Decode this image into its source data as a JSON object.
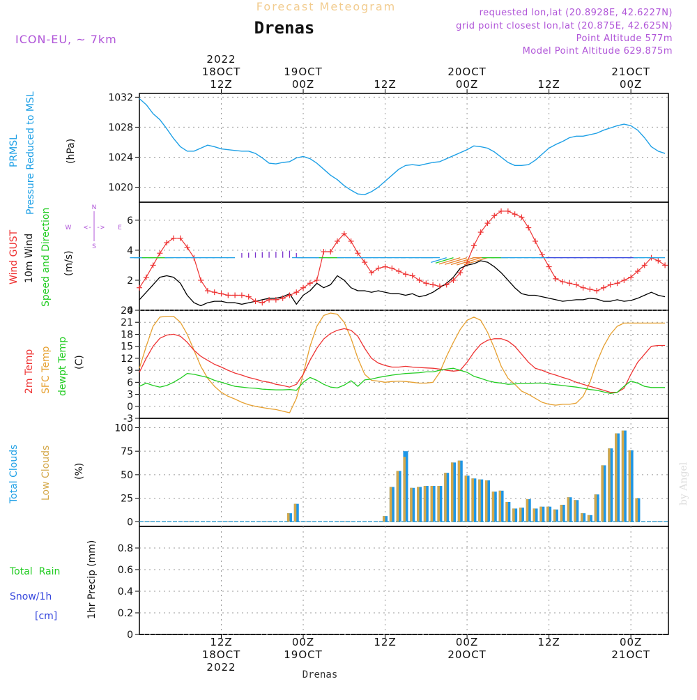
{
  "header": {
    "product": "Forecast Meteogram",
    "location": "Drenas",
    "model": "ICON-EU, ~ 7km",
    "requested": "requested lon,lat (20.8928E, 42.6227N)",
    "grid_point": "grid point closest lon,lat (20.875E, 42.625N)",
    "altitude": "Point Altitude 577m",
    "model_altitude": "Model Point Altitude 629.875m"
  },
  "footer_location": "Drenas",
  "watermark": "by Angel",
  "colors": {
    "pressure": "#1ea0e6",
    "gust": "#ee3333",
    "wind": "#000000",
    "t2m": "#ee3333",
    "sfc": "#e6a030",
    "dewpt": "#22cc22",
    "cloud_total": "#1e96e6",
    "cloud_low": "#d4a84a",
    "rain": "#22cc22",
    "snow": "#3344dd",
    "purple": "#b055d8"
  },
  "time_axis": {
    "top": [
      {
        "h": 12,
        "lines": [
          "2022",
          "18OCT",
          "12Z"
        ]
      },
      {
        "h": 24,
        "lines": [
          "19OCT",
          "00Z"
        ]
      },
      {
        "h": 36,
        "lines": [
          "12Z"
        ]
      },
      {
        "h": 48,
        "lines": [
          "20OCT",
          "00Z"
        ]
      },
      {
        "h": 60,
        "lines": [
          "12Z"
        ]
      },
      {
        "h": 72,
        "lines": [
          "21OCT",
          "00Z"
        ]
      }
    ],
    "bottom": [
      {
        "h": 12,
        "lines": [
          "12Z",
          "18OCT",
          "2022"
        ]
      },
      {
        "h": 24,
        "lines": [
          "00Z",
          "19OCT"
        ]
      },
      {
        "h": 36,
        "lines": [
          "12Z"
        ]
      },
      {
        "h": 48,
        "lines": [
          "00Z",
          "20OCT"
        ]
      },
      {
        "h": 60,
        "lines": [
          "12Z"
        ]
      },
      {
        "h": 72,
        "lines": [
          "00Z",
          "21OCT"
        ]
      }
    ]
  },
  "panels": {
    "pressure": {
      "labels": [
        "PRMSL",
        "Pressure Reduced to MSL"
      ],
      "unit": "(hPa)"
    },
    "wind": {
      "labels": [
        "Wind GUST",
        "10m Wind",
        "Speed and Direction"
      ],
      "unit": "(m/s)",
      "compass": [
        "N",
        "W",
        "<-|->",
        "E",
        "S"
      ]
    },
    "temp": {
      "labels": [
        "2m Temp",
        "SFC Temp",
        "dewpt Temp"
      ],
      "unit": "(C)"
    },
    "clouds": {
      "labels": [
        "Total Clouds",
        "Low Clouds"
      ],
      "unit": "(%)"
    },
    "precip": {
      "labels": [
        "Total  Rain",
        "Snow/1h",
        "[cm]"
      ],
      "ylabel": "1hr Precip (mm)"
    }
  },
  "chart_data": [
    {
      "type": "line",
      "title": "PRMSL Pressure Reduced to MSL",
      "ylabel": "(hPa)",
      "ylim": [
        1018,
        1032.5
      ],
      "yticks": [
        1020,
        1024,
        1028,
        1032
      ],
      "grid": true,
      "x_hours": [
        0,
        1,
        2,
        3,
        4,
        5,
        6,
        7,
        8,
        9,
        10,
        11,
        12,
        13,
        14,
        15,
        16,
        17,
        18,
        19,
        20,
        21,
        22,
        23,
        24,
        25,
        26,
        27,
        28,
        29,
        30,
        31,
        32,
        33,
        34,
        35,
        36,
        37,
        38,
        39,
        40,
        41,
        42,
        43,
        44,
        45,
        46,
        47,
        48,
        49,
        50,
        51,
        52,
        53,
        54,
        55,
        56,
        57,
        58,
        59,
        60,
        61,
        62,
        63,
        64,
        65,
        66,
        67,
        68,
        69,
        70,
        71,
        72,
        73,
        74,
        75,
        76,
        77
      ],
      "series": [
        {
          "name": "PRMSL",
          "values": [
            1031.8,
            1031.0,
            1029.8,
            1029.0,
            1027.8,
            1026.5,
            1025.4,
            1024.8,
            1024.8,
            1025.2,
            1025.6,
            1025.4,
            1025.1,
            1025.0,
            1024.9,
            1024.8,
            1024.8,
            1024.5,
            1023.9,
            1023.2,
            1023.1,
            1023.3,
            1023.4,
            1023.9,
            1024.1,
            1023.8,
            1023.2,
            1022.4,
            1021.6,
            1021.0,
            1020.2,
            1019.6,
            1019.1,
            1019.0,
            1019.4,
            1020.0,
            1020.8,
            1021.6,
            1022.4,
            1022.9,
            1023.0,
            1022.9,
            1023.1,
            1023.3,
            1023.4,
            1023.8,
            1024.2,
            1024.6,
            1025.0,
            1025.5,
            1025.4,
            1025.2,
            1024.7,
            1024.0,
            1023.3,
            1022.9,
            1022.9,
            1023.0,
            1023.6,
            1024.4,
            1025.2,
            1025.7,
            1026.1,
            1026.6,
            1026.8,
            1026.8,
            1027.0,
            1027.2,
            1027.6,
            1027.9,
            1028.2,
            1028.4,
            1028.2,
            1027.6,
            1026.6,
            1025.4,
            1024.8,
            1024.5
          ]
        }
      ]
    },
    {
      "type": "line",
      "title": "Wind GUST / 10m Wind Speed and Direction",
      "ylabel": "(m/s)",
      "ylim": [
        0,
        7.2
      ],
      "yticks": [
        0,
        2,
        4,
        6
      ],
      "grid": true,
      "x_hours": [
        0,
        1,
        2,
        3,
        4,
        5,
        6,
        7,
        8,
        9,
        10,
        11,
        12,
        13,
        14,
        15,
        16,
        17,
        18,
        19,
        20,
        21,
        22,
        23,
        24,
        25,
        26,
        27,
        28,
        29,
        30,
        31,
        32,
        33,
        34,
        35,
        36,
        37,
        38,
        39,
        40,
        41,
        42,
        43,
        44,
        45,
        46,
        47,
        48,
        49,
        50,
        51,
        52,
        53,
        54,
        55,
        56,
        57,
        58,
        59,
        60,
        61,
        62,
        63,
        64,
        65,
        66,
        67,
        68,
        69,
        70,
        71,
        72,
        73,
        74,
        75,
        76,
        77
      ],
      "series": [
        {
          "name": "Wind GUST",
          "values": [
            1.5,
            2.2,
            3.0,
            3.8,
            4.5,
            4.8,
            4.8,
            4.2,
            3.5,
            2.0,
            1.3,
            1.2,
            1.1,
            1.0,
            1.0,
            1.0,
            0.9,
            0.6,
            0.5,
            0.7,
            0.7,
            0.8,
            1.0,
            1.2,
            1.5,
            1.8,
            2.0,
            3.9,
            3.9,
            4.6,
            5.1,
            4.6,
            3.8,
            3.2,
            2.5,
            2.8,
            2.9,
            2.8,
            2.6,
            2.4,
            2.3,
            2.0,
            1.8,
            1.7,
            1.6,
            1.7,
            2.0,
            2.5,
            3.2,
            4.3,
            5.2,
            5.8,
            6.3,
            6.6,
            6.6,
            6.4,
            6.2,
            5.5,
            4.6,
            3.7,
            2.9,
            2.1,
            1.9,
            1.8,
            1.7,
            1.5,
            1.4,
            1.3,
            1.5,
            1.7,
            1.8,
            2.0,
            2.2,
            2.6,
            3.0,
            3.5,
            3.3,
            3.0
          ]
        },
        {
          "name": "10m Wind",
          "values": [
            0.7,
            1.2,
            1.7,
            2.2,
            2.3,
            2.2,
            1.8,
            1.0,
            0.5,
            0.3,
            0.5,
            0.6,
            0.6,
            0.5,
            0.5,
            0.4,
            0.5,
            0.6,
            0.7,
            0.8,
            0.8,
            0.9,
            1.1,
            0.4,
            1.0,
            1.3,
            1.8,
            1.5,
            1.7,
            2.3,
            2.0,
            1.5,
            1.3,
            1.3,
            1.2,
            1.3,
            1.2,
            1.1,
            1.1,
            1.0,
            1.1,
            0.9,
            1.0,
            1.2,
            1.5,
            1.8,
            2.2,
            2.8,
            3.0,
            3.1,
            3.3,
            3.2,
            2.9,
            2.5,
            2.0,
            1.5,
            1.1,
            1.0,
            1.0,
            0.9,
            0.8,
            0.7,
            0.6,
            0.65,
            0.7,
            0.7,
            0.8,
            0.75,
            0.6,
            0.6,
            0.7,
            0.6,
            0.65,
            0.8,
            1.0,
            1.2,
            1.0,
            0.9
          ]
        }
      ]
    },
    {
      "type": "line",
      "title": "2m Temp / SFC Temp / dewpt Temp",
      "ylabel": "(C)",
      "ylim": [
        -3,
        24
      ],
      "yticks": [
        -3,
        0,
        3,
        6,
        9,
        12,
        15,
        18,
        21,
        24
      ],
      "grid": true,
      "x_hours": [
        0,
        1,
        2,
        3,
        4,
        5,
        6,
        7,
        8,
        9,
        10,
        11,
        12,
        13,
        14,
        15,
        16,
        17,
        18,
        19,
        20,
        21,
        22,
        23,
        24,
        25,
        26,
        27,
        28,
        29,
        30,
        31,
        32,
        33,
        34,
        35,
        36,
        37,
        38,
        39,
        40,
        41,
        42,
        43,
        44,
        45,
        46,
        47,
        48,
        49,
        50,
        51,
        52,
        53,
        54,
        55,
        56,
        57,
        58,
        59,
        60,
        61,
        62,
        63,
        64,
        65,
        66,
        67,
        68,
        69,
        70,
        71,
        72,
        73,
        74,
        75,
        76,
        77
      ],
      "series": [
        {
          "name": "2m Temp",
          "values": [
            8.5,
            12,
            15,
            17,
            17.8,
            18,
            17.5,
            16,
            14,
            12.5,
            11.5,
            10.5,
            9.8,
            9,
            8.3,
            7.8,
            7.2,
            6.8,
            6.3,
            6,
            5.5,
            5.2,
            4.8,
            5.5,
            8,
            11.5,
            14.5,
            16.8,
            18.2,
            19,
            19.4,
            19,
            17.5,
            14.5,
            12,
            10.8,
            10.2,
            9.8,
            9.8,
            10,
            9.8,
            9.7,
            9.6,
            9.5,
            9.3,
            9,
            8.8,
            9,
            11,
            13.5,
            15.5,
            16.5,
            16.9,
            16.9,
            16.3,
            15,
            13,
            11,
            9.5,
            9,
            8.3,
            7.8,
            7.2,
            6.7,
            6,
            5.5,
            5,
            4.5,
            4,
            3.5,
            3.5,
            4.5,
            8,
            11,
            13,
            15,
            15.2,
            15.2
          ]
        },
        {
          "name": "SFC Temp",
          "values": [
            9.5,
            15,
            20,
            22.3,
            22.5,
            22.5,
            21,
            18,
            14,
            10,
            7,
            5,
            3.5,
            2.5,
            1.8,
            1,
            0.4,
            0,
            -0.3,
            -0.6,
            -0.8,
            -1.2,
            -1.6,
            2,
            8,
            15,
            20,
            22.7,
            23.3,
            23,
            21,
            17,
            12,
            8,
            6.5,
            6.3,
            6,
            6.2,
            6.3,
            6.2,
            6,
            5.8,
            5.8,
            6,
            8.5,
            12.5,
            16,
            19.2,
            21.5,
            22.3,
            21.5,
            18.5,
            14.5,
            10,
            7,
            5.5,
            3.8,
            3,
            2,
            1,
            0.5,
            0.3,
            0.5,
            0.5,
            0.8,
            2.5,
            6,
            11,
            15,
            18,
            20,
            20.8,
            20.8,
            20.8,
            20.8,
            20.8,
            20.8,
            20.8
          ]
        },
        {
          "name": "dewpt Temp",
          "values": [
            5,
            5.8,
            5.2,
            4.8,
            5.2,
            6,
            7,
            8.2,
            8,
            7.6,
            7.2,
            6.5,
            6,
            5.5,
            5,
            4.8,
            4.6,
            4.5,
            4.3,
            4.2,
            4.1,
            4.1,
            4.2,
            4,
            6,
            7.2,
            6.5,
            5.5,
            4.8,
            4.6,
            5.3,
            6.4,
            5,
            6.6,
            6.8,
            7.2,
            7.5,
            7.8,
            8,
            8.2,
            8.3,
            8.4,
            8.6,
            8.6,
            9,
            9.3,
            9.5,
            9,
            8.5,
            7.5,
            7,
            6.4,
            6,
            5.8,
            5.5,
            5.6,
            5.7,
            5.7,
            5.8,
            5.8,
            5.6,
            5.4,
            5.2,
            5,
            4.8,
            4.5,
            4.2,
            4,
            3.6,
            3.2,
            3.5,
            5,
            6.3,
            5.8,
            5,
            4.7,
            4.7,
            4.7
          ]
        }
      ]
    },
    {
      "type": "bar",
      "title": "Total Clouds / Low Clouds",
      "ylabel": "(%)",
      "ylim": [
        -5,
        110
      ],
      "yticks": [
        0,
        25,
        50,
        75,
        100
      ],
      "grid": true,
      "x_hours": [
        0,
        1,
        2,
        3,
        4,
        5,
        6,
        7,
        8,
        9,
        10,
        11,
        12,
        13,
        14,
        15,
        16,
        17,
        18,
        19,
        20,
        21,
        22,
        23,
        24,
        25,
        26,
        27,
        28,
        29,
        30,
        31,
        32,
        33,
        34,
        35,
        36,
        37,
        38,
        39,
        40,
        41,
        42,
        43,
        44,
        45,
        46,
        47,
        48,
        49,
        50,
        51,
        52,
        53,
        54,
        55,
        56,
        57,
        58,
        59,
        60,
        61,
        62,
        63,
        64,
        65,
        66,
        67,
        68,
        69,
        70,
        71,
        72,
        73,
        74,
        75,
        76
      ],
      "series": [
        {
          "name": "Total Clouds",
          "values": [
            0,
            0,
            0,
            0,
            0,
            0,
            0,
            0,
            0,
            0,
            0,
            0,
            0,
            0,
            0,
            0,
            0,
            0,
            0,
            0,
            0,
            0,
            9,
            19,
            0,
            0,
            0,
            0,
            0,
            0,
            0,
            0,
            0,
            0,
            0,
            0,
            6,
            37,
            54,
            75,
            36,
            37,
            38,
            38,
            38,
            52,
            63,
            65,
            49,
            46,
            45,
            44,
            32,
            33,
            21,
            14,
            15,
            24,
            14,
            16,
            16,
            13,
            18,
            26,
            23,
            9,
            7,
            29,
            60,
            78,
            94,
            97,
            76,
            25,
            0,
            0,
            0
          ]
        },
        {
          "name": "Low Clouds",
          "values": [
            0,
            0,
            0,
            0,
            0,
            0,
            0,
            0,
            0,
            0,
            0,
            0,
            0,
            0,
            0,
            0,
            0,
            0,
            0,
            0,
            0,
            0,
            9,
            19,
            0,
            0,
            0,
            0,
            0,
            0,
            0,
            0,
            0,
            0,
            0,
            0,
            6,
            37,
            54,
            69,
            36,
            37,
            38,
            38,
            38,
            52,
            63,
            65,
            49,
            46,
            45,
            44,
            32,
            33,
            21,
            14,
            15,
            24,
            14,
            16,
            16,
            13,
            18,
            26,
            23,
            9,
            7,
            29,
            60,
            78,
            94,
            97,
            76,
            25,
            0,
            0,
            0
          ]
        }
      ]
    },
    {
      "type": "bar",
      "title": "Total Rain / Snow/1h",
      "ylabel": "1hr Precip (mm)",
      "ylim": [
        0,
        1.0
      ],
      "yticks": [
        0,
        0.2,
        0.4,
        0.6,
        0.8
      ],
      "grid": true,
      "series": [
        {
          "name": "Total Rain",
          "values": [
            0
          ]
        },
        {
          "name": "Snow/1h",
          "values": [
            0
          ]
        }
      ]
    }
  ]
}
